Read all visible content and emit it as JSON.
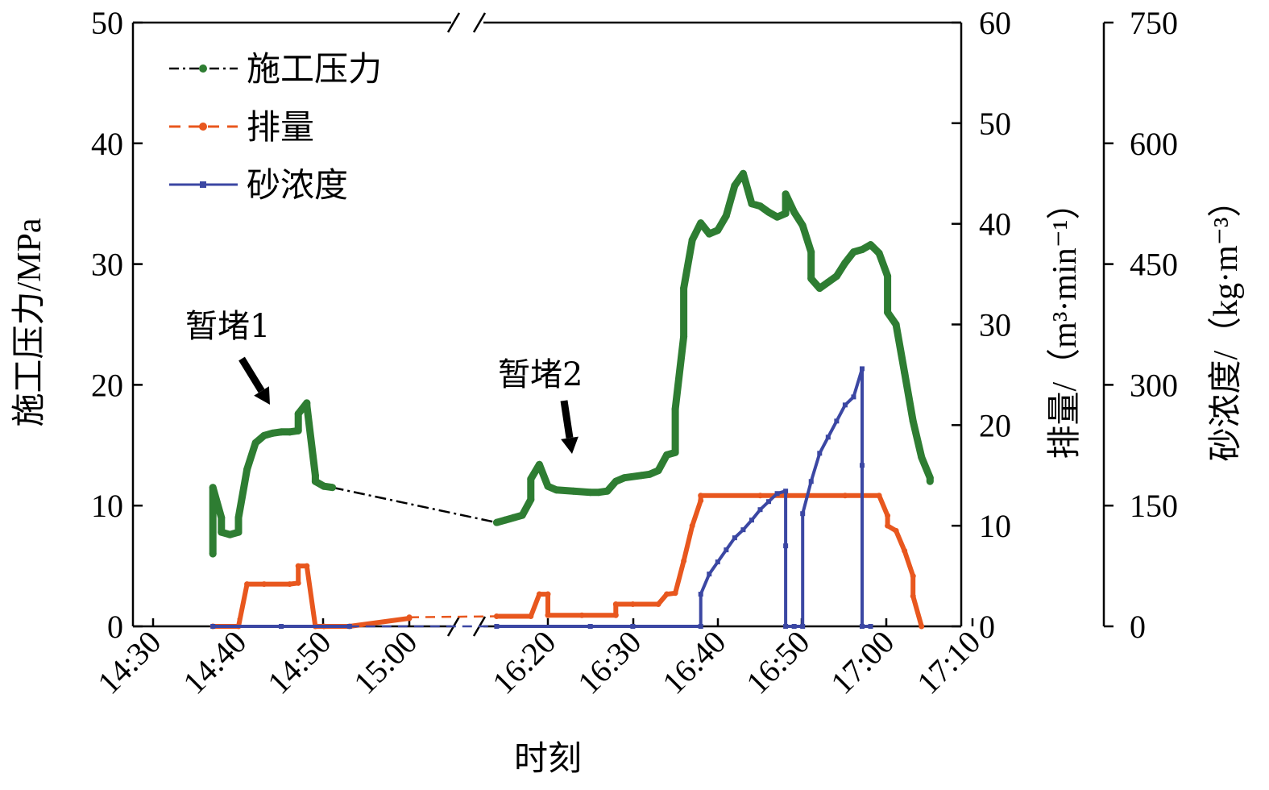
{
  "chart_data": {
    "type": "line",
    "xlabel": "时刻",
    "ylabel_left": "施工压力/MPa",
    "ylabel_right1": "排量/（m³·min⁻¹）",
    "ylabel_right2": "砂浓度/（kg·m⁻³）",
    "x_ticks": [
      "14:30",
      "14:40",
      "14:50",
      "15:00",
      "16:20",
      "16:30",
      "16:40",
      "16:50",
      "17:00",
      "17:10"
    ],
    "x_break": "15:00–16:20",
    "y_left": {
      "ticks": [
        "0",
        "10",
        "20",
        "30",
        "40",
        "50"
      ],
      "range": [
        0,
        50
      ]
    },
    "y_right1": {
      "ticks": [
        "0",
        "10",
        "20",
        "30",
        "40",
        "50",
        "60"
      ],
      "range": [
        0,
        60
      ]
    },
    "y_right2": {
      "ticks": [
        "0",
        "150",
        "300",
        "450",
        "600",
        "750"
      ],
      "range": [
        0,
        750
      ]
    },
    "legend": [
      {
        "label": "施工压力",
        "color": "#2e7d32",
        "style": "dash-dot"
      },
      {
        "label": "排量",
        "color": "#e8571e",
        "style": "dashed"
      },
      {
        "label": "砂浓度",
        "color": "#3b47a3",
        "style": "solid"
      }
    ],
    "legend_position": "top-left",
    "annotations": [
      {
        "text": "暂堵1",
        "target_time": "14:45",
        "target_value": 16.5
      },
      {
        "text": "暂堵2",
        "target_time": "16:22",
        "target_value": 14
      }
    ],
    "series": [
      {
        "name": "施工压力",
        "axis": "left",
        "color": "#2e7d32",
        "points": [
          [
            "14:37",
            6
          ],
          [
            "14:37",
            11.5
          ],
          [
            "14:38",
            9
          ],
          [
            "14:38",
            7.8
          ],
          [
            "14:39",
            7.6
          ],
          [
            "14:40",
            7.8
          ],
          [
            "14:40",
            9
          ],
          [
            "14:41",
            13
          ],
          [
            "14:42",
            15.2
          ],
          [
            "14:43",
            15.8
          ],
          [
            "14:44",
            16
          ],
          [
            "14:45",
            16.1
          ],
          [
            "14:46",
            16.1
          ],
          [
            "14:47",
            16.2
          ],
          [
            "14:47",
            17.6
          ],
          [
            "14:48",
            18.5
          ],
          [
            "14:48",
            18.3
          ],
          [
            "14:49",
            12.5
          ],
          [
            "14:49",
            12.0
          ],
          [
            "14:50",
            11.6
          ],
          [
            "14:51",
            11.5
          ],
          [
            "16:14",
            8.6
          ],
          [
            "16:15",
            8.8
          ],
          [
            "16:16",
            9.0
          ],
          [
            "16:17",
            9.2
          ],
          [
            "16:18",
            10.5
          ],
          [
            "16:18",
            12.2
          ],
          [
            "16:19",
            13.4
          ],
          [
            "16:20",
            11.6
          ],
          [
            "16:21",
            11.3
          ],
          [
            "16:23",
            11.2
          ],
          [
            "16:25",
            11.1
          ],
          [
            "16:26",
            11.1
          ],
          [
            "16:27",
            11.2
          ],
          [
            "16:28",
            12.0
          ],
          [
            "16:29",
            12.3
          ],
          [
            "16:31",
            12.5
          ],
          [
            "16:32",
            12.6
          ],
          [
            "16:33",
            12.9
          ],
          [
            "16:34",
            14.2
          ],
          [
            "16:35",
            14.4
          ],
          [
            "16:35",
            18
          ],
          [
            "16:36",
            24
          ],
          [
            "16:36",
            28
          ],
          [
            "16:37",
            32
          ],
          [
            "16:38",
            33.4
          ],
          [
            "16:39",
            32.5
          ],
          [
            "16:40",
            32.8
          ],
          [
            "16:41",
            34
          ],
          [
            "16:42",
            36.5
          ],
          [
            "16:43",
            37.5
          ],
          [
            "16:44",
            35
          ],
          [
            "16:45",
            34.8
          ],
          [
            "16:46",
            34.3
          ],
          [
            "16:47",
            33.9
          ],
          [
            "16:48",
            34.2
          ],
          [
            "16:48",
            35.8
          ],
          [
            "16:49",
            34.3
          ],
          [
            "16:50",
            33.2
          ],
          [
            "16:51",
            31
          ],
          [
            "16:51",
            28.8
          ],
          [
            "16:52",
            28
          ],
          [
            "16:53",
            28.5
          ],
          [
            "16:54",
            29
          ],
          [
            "16:55",
            30.1
          ],
          [
            "16:56",
            31
          ],
          [
            "16:57",
            31.2
          ],
          [
            "16:58",
            31.6
          ],
          [
            "16:59",
            30.9
          ],
          [
            "17:00",
            29
          ],
          [
            "17:00",
            26
          ],
          [
            "17:01",
            25
          ],
          [
            "17:02",
            21
          ],
          [
            "17:03",
            17
          ],
          [
            "17:04",
            14
          ],
          [
            "17:05",
            12.3
          ],
          [
            "17:05",
            12
          ]
        ]
      },
      {
        "name": "排量",
        "axis": "right1",
        "color": "#e8571e",
        "points": [
          [
            "14:37",
            0
          ],
          [
            "14:40",
            0
          ],
          [
            "14:41",
            4.2
          ],
          [
            "14:43",
            4.2
          ],
          [
            "14:46",
            4.2
          ],
          [
            "14:47",
            4.3
          ],
          [
            "14:47",
            6
          ],
          [
            "14:48",
            6
          ],
          [
            "14:49",
            0
          ],
          [
            "14:50",
            0
          ],
          [
            "14:53",
            0
          ],
          [
            "15:00",
            0.8
          ],
          [
            "15:00",
            0.9
          ],
          [
            "16:14",
            1.0
          ],
          [
            "16:18",
            1.0
          ],
          [
            "16:19",
            3.2
          ],
          [
            "16:20",
            3.2
          ],
          [
            "16:20",
            1.1
          ],
          [
            "16:24",
            1.1
          ],
          [
            "16:28",
            1.1
          ],
          [
            "16:28",
            2.2
          ],
          [
            "16:30",
            2.2
          ],
          [
            "16:33",
            2.2
          ],
          [
            "16:34",
            3.2
          ],
          [
            "16:35",
            3.3
          ],
          [
            "16:36",
            6.5
          ],
          [
            "16:37",
            10
          ],
          [
            "16:38",
            12.5
          ],
          [
            "16:38",
            13.0
          ],
          [
            "16:45",
            13.0
          ],
          [
            "16:55",
            13.0
          ],
          [
            "16:59",
            13.0
          ],
          [
            "17:00",
            11
          ],
          [
            "17:00",
            10
          ],
          [
            "17:01",
            9.5
          ],
          [
            "17:02",
            7.5
          ],
          [
            "17:03",
            5
          ],
          [
            "17:03",
            3
          ],
          [
            "17:04",
            0
          ]
        ]
      },
      {
        "name": "砂浓度",
        "axis": "right2",
        "color": "#3b47a3",
        "points": [
          [
            "14:37",
            0
          ],
          [
            "14:45",
            0
          ],
          [
            "14:53",
            0
          ],
          [
            "16:14",
            0
          ],
          [
            "16:25",
            0
          ],
          [
            "16:30",
            0
          ],
          [
            "16:38",
            0
          ],
          [
            "16:38",
            40
          ],
          [
            "16:39",
            65
          ],
          [
            "16:40",
            80
          ],
          [
            "16:41",
            95
          ],
          [
            "16:42",
            110
          ],
          [
            "16:43",
            120
          ],
          [
            "16:44",
            132
          ],
          [
            "16:45",
            145
          ],
          [
            "16:46",
            155
          ],
          [
            "16:47",
            165
          ],
          [
            "16:48",
            168
          ],
          [
            "16:48",
            100
          ],
          [
            "16:48",
            0
          ],
          [
            "16:49",
            0
          ],
          [
            "16:50",
            0
          ],
          [
            "16:50",
            140
          ],
          [
            "16:51",
            180
          ],
          [
            "16:52",
            215
          ],
          [
            "16:53",
            235
          ],
          [
            "16:54",
            255
          ],
          [
            "16:55",
            275
          ],
          [
            "16:56",
            285
          ],
          [
            "16:57",
            320
          ],
          [
            "16:57",
            200
          ],
          [
            "16:57",
            0
          ],
          [
            "16:58",
            0
          ]
        ]
      }
    ]
  }
}
